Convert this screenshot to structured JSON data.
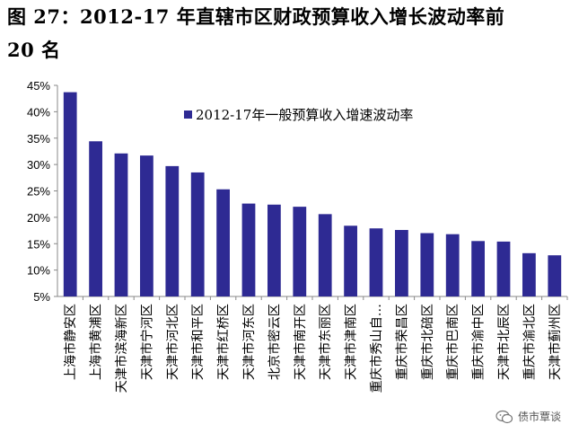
{
  "figure": {
    "title_line1": "图 27：2012-17 年直辖市区财政预算收入增长波动率前",
    "title_line2": "20 名"
  },
  "watermark": {
    "text": "债市覃谈",
    "icon": "wechat-icon"
  },
  "chart_data": {
    "type": "bar",
    "ylim": [
      5,
      45
    ],
    "yticks": [
      "5%",
      "10%",
      "15%",
      "20%",
      "25%",
      "30%",
      "35%",
      "40%",
      "45%"
    ],
    "ytick_values": [
      5,
      10,
      15,
      20,
      25,
      30,
      35,
      40,
      45
    ],
    "legend": "2012-17年一般预算收入增速波动率",
    "legend_position": "top-right",
    "grid": false,
    "bar_color": "#2E2A93",
    "categories": [
      "上海市静安区",
      "上海市黄浦区",
      "天津市滨海新区",
      "天津市宁河区",
      "天津市河北区",
      "天津市和平区",
      "天津市红桥区",
      "天津市河东区",
      "北京市密云区",
      "天津市南开区",
      "天津市东丽区",
      "天津市津南区",
      "重庆市秀山自…",
      "重庆市荣昌区",
      "重庆市北碚区",
      "重庆市巴南区",
      "重庆市渝中区",
      "天津市北辰区",
      "重庆市渝北区",
      "天津市蓟州区"
    ],
    "values": [
      43.7,
      34.4,
      32.1,
      31.7,
      29.7,
      28.5,
      25.3,
      22.6,
      22.4,
      22.0,
      20.6,
      18.4,
      17.9,
      17.6,
      17.0,
      16.8,
      15.5,
      15.4,
      13.2,
      12.8
    ]
  }
}
